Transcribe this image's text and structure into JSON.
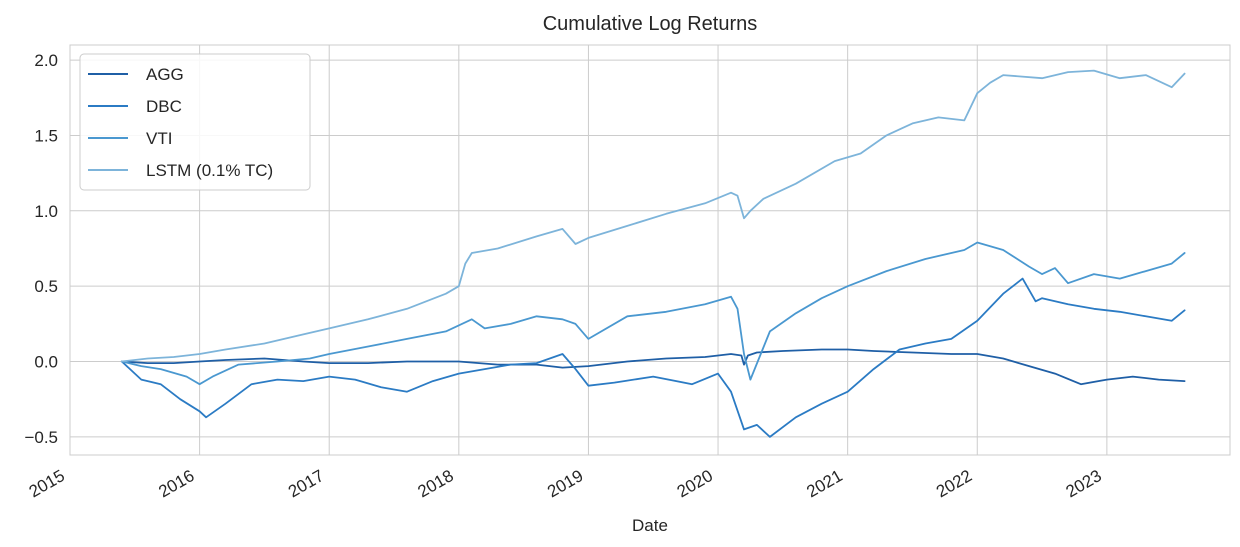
{
  "chart_data": {
    "type": "line",
    "title": "Cumulative Log Returns",
    "xlabel": "Date",
    "ylabel": "",
    "xlim": [
      2015.0,
      2023.95
    ],
    "ylim": [
      -0.62,
      2.1
    ],
    "x_ticks": [
      "2015",
      "2016",
      "2017",
      "2018",
      "2019",
      "2020",
      "2021",
      "2022",
      "2023"
    ],
    "y_ticks": [
      "−0.5",
      "0.0",
      "0.5",
      "1.0",
      "1.5",
      "2.0"
    ],
    "y_tick_values": [
      -0.5,
      0.0,
      0.5,
      1.0,
      1.5,
      2.0
    ],
    "grid": true,
    "legend_position": "top-left",
    "series": [
      {
        "name": "AGG",
        "color": "#1f5fa6",
        "x": [
          2015.4,
          2015.6,
          2015.8,
          2016.0,
          2016.2,
          2016.5,
          2016.8,
          2017.0,
          2017.3,
          2017.6,
          2018.0,
          2018.3,
          2018.6,
          2018.8,
          2019.0,
          2019.3,
          2019.6,
          2019.9,
          2020.1,
          2020.18,
          2020.2,
          2020.23,
          2020.3,
          2020.5,
          2020.8,
          2021.0,
          2021.2,
          2021.5,
          2021.8,
          2022.0,
          2022.2,
          2022.4,
          2022.6,
          2022.8,
          2023.0,
          2023.2,
          2023.4,
          2023.6
        ],
        "values": [
          0.0,
          -0.01,
          -0.01,
          0.0,
          0.01,
          0.02,
          0.0,
          -0.01,
          -0.01,
          0.0,
          0.0,
          -0.02,
          -0.02,
          -0.04,
          -0.03,
          0.0,
          0.02,
          0.03,
          0.05,
          0.04,
          -0.02,
          0.04,
          0.06,
          0.07,
          0.08,
          0.08,
          0.07,
          0.06,
          0.05,
          0.05,
          0.02,
          -0.03,
          -0.08,
          -0.15,
          -0.12,
          -0.1,
          -0.12,
          -0.13
        ]
      },
      {
        "name": "DBC",
        "color": "#2b7bc4",
        "x": [
          2015.4,
          2015.55,
          2015.7,
          2015.85,
          2016.0,
          2016.05,
          2016.2,
          2016.4,
          2016.6,
          2016.8,
          2017.0,
          2017.2,
          2017.4,
          2017.6,
          2017.8,
          2018.0,
          2018.2,
          2018.4,
          2018.6,
          2018.8,
          2018.9,
          2019.0,
          2019.2,
          2019.5,
          2019.8,
          2020.0,
          2020.1,
          2020.2,
          2020.3,
          2020.4,
          2020.6,
          2020.8,
          2021.0,
          2021.2,
          2021.4,
          2021.6,
          2021.8,
          2022.0,
          2022.2,
          2022.35,
          2022.45,
          2022.5,
          2022.7,
          2022.9,
          2023.1,
          2023.3,
          2023.5,
          2023.6
        ],
        "values": [
          0.0,
          -0.12,
          -0.15,
          -0.25,
          -0.33,
          -0.37,
          -0.28,
          -0.15,
          -0.12,
          -0.13,
          -0.1,
          -0.12,
          -0.17,
          -0.2,
          -0.13,
          -0.08,
          -0.05,
          -0.02,
          -0.01,
          0.05,
          -0.05,
          -0.16,
          -0.14,
          -0.1,
          -0.15,
          -0.08,
          -0.2,
          -0.45,
          -0.42,
          -0.5,
          -0.37,
          -0.28,
          -0.2,
          -0.05,
          0.08,
          0.12,
          0.15,
          0.27,
          0.45,
          0.55,
          0.4,
          0.42,
          0.38,
          0.35,
          0.33,
          0.3,
          0.27,
          0.34
        ]
      },
      {
        "name": "VTI",
        "color": "#4a98d0",
        "x": [
          2015.4,
          2015.55,
          2015.7,
          2015.9,
          2016.0,
          2016.1,
          2016.3,
          2016.6,
          2016.85,
          2017.0,
          2017.3,
          2017.6,
          2017.9,
          2018.1,
          2018.2,
          2018.4,
          2018.6,
          2018.8,
          2018.9,
          2019.0,
          2019.3,
          2019.6,
          2019.9,
          2020.1,
          2020.15,
          2020.2,
          2020.25,
          2020.4,
          2020.6,
          2020.8,
          2021.0,
          2021.3,
          2021.6,
          2021.9,
          2022.0,
          2022.2,
          2022.4,
          2022.5,
          2022.6,
          2022.7,
          2022.9,
          2023.1,
          2023.3,
          2023.5,
          2023.6
        ],
        "values": [
          0.0,
          -0.03,
          -0.05,
          -0.1,
          -0.15,
          -0.1,
          -0.02,
          0.0,
          0.02,
          0.05,
          0.1,
          0.15,
          0.2,
          0.28,
          0.22,
          0.25,
          0.3,
          0.28,
          0.25,
          0.15,
          0.3,
          0.33,
          0.38,
          0.43,
          0.35,
          0.05,
          -0.12,
          0.2,
          0.32,
          0.42,
          0.5,
          0.6,
          0.68,
          0.74,
          0.79,
          0.74,
          0.63,
          0.58,
          0.62,
          0.52,
          0.58,
          0.55,
          0.6,
          0.65,
          0.72
        ]
      },
      {
        "name": "LSTM (0.1% TC)",
        "color": "#7db4da",
        "x": [
          2015.4,
          2015.6,
          2015.8,
          2016.0,
          2016.2,
          2016.5,
          2016.8,
          2017.0,
          2017.3,
          2017.6,
          2017.9,
          2018.0,
          2018.05,
          2018.1,
          2018.3,
          2018.6,
          2018.8,
          2018.9,
          2019.0,
          2019.3,
          2019.6,
          2019.9,
          2020.1,
          2020.15,
          2020.2,
          2020.25,
          2020.35,
          2020.6,
          2020.9,
          2021.1,
          2021.3,
          2021.5,
          2021.7,
          2021.9,
          2022.0,
          2022.1,
          2022.2,
          2022.5,
          2022.7,
          2022.9,
          2023.1,
          2023.3,
          2023.5,
          2023.6
        ],
        "values": [
          0.0,
          0.02,
          0.03,
          0.05,
          0.08,
          0.12,
          0.18,
          0.22,
          0.28,
          0.35,
          0.45,
          0.5,
          0.65,
          0.72,
          0.75,
          0.83,
          0.88,
          0.78,
          0.82,
          0.9,
          0.98,
          1.05,
          1.12,
          1.1,
          0.95,
          1.0,
          1.08,
          1.18,
          1.33,
          1.38,
          1.5,
          1.58,
          1.62,
          1.6,
          1.78,
          1.85,
          1.9,
          1.88,
          1.92,
          1.93,
          1.88,
          1.9,
          1.82,
          1.91
        ]
      }
    ]
  }
}
